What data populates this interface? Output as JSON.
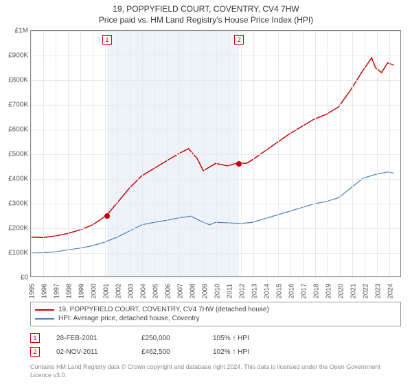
{
  "title": "19, POPPYFIELD COURT, COVENTRY, CV4 7HW",
  "subtitle": "Price paid vs. HM Land Registry's House Price Index (HPI)",
  "chart": {
    "type": "line",
    "background_color": "#ffffff",
    "grid_color": "#e8e8e8",
    "border_color": "#888888",
    "shade_color": "#e6eef7",
    "x_years": [
      1995,
      1996,
      1997,
      1998,
      1999,
      2000,
      2001,
      2002,
      2003,
      2004,
      2005,
      2006,
      2007,
      2008,
      2009,
      2010,
      2011,
      2012,
      2013,
      2014,
      2015,
      2016,
      2017,
      2018,
      2019,
      2020,
      2021,
      2022,
      2023,
      2024
    ],
    "x_range": [
      1995,
      2025
    ],
    "y_ticks": [
      0,
      100000,
      200000,
      300000,
      400000,
      500000,
      600000,
      700000,
      800000,
      900000,
      1000000
    ],
    "y_tick_labels": [
      "£0",
      "£100K",
      "£200K",
      "£300K",
      "£400K",
      "£500K",
      "£600K",
      "£700K",
      "£800K",
      "£900K",
      "£1M"
    ],
    "y_range": [
      0,
      1000000
    ],
    "title_fontsize": 12,
    "label_fontsize": 10,
    "shaded_range": [
      2001.16,
      2011.84
    ],
    "series": [
      {
        "name": "19, POPPYFIELD COURT, COVENTRY, CV4 7HW (detached house)",
        "color": "#cc0000",
        "line_width": 1.5,
        "data": [
          [
            1995,
            160000
          ],
          [
            1996,
            158000
          ],
          [
            1997,
            165000
          ],
          [
            1998,
            175000
          ],
          [
            1999,
            190000
          ],
          [
            2000,
            210000
          ],
          [
            2001.16,
            250000
          ],
          [
            2002,
            300000
          ],
          [
            2003,
            360000
          ],
          [
            2004,
            410000
          ],
          [
            2005,
            440000
          ],
          [
            2006,
            470000
          ],
          [
            2007,
            500000
          ],
          [
            2007.8,
            520000
          ],
          [
            2008.5,
            480000
          ],
          [
            2009,
            430000
          ],
          [
            2009.5,
            445000
          ],
          [
            2010,
            460000
          ],
          [
            2011,
            450000
          ],
          [
            2011.84,
            462500
          ],
          [
            2012.5,
            460000
          ],
          [
            2013,
            475000
          ],
          [
            2014,
            510000
          ],
          [
            2015,
            545000
          ],
          [
            2016,
            580000
          ],
          [
            2017,
            610000
          ],
          [
            2018,
            640000
          ],
          [
            2019,
            660000
          ],
          [
            2020,
            690000
          ],
          [
            2021,
            760000
          ],
          [
            2022,
            840000
          ],
          [
            2022.7,
            890000
          ],
          [
            2023,
            850000
          ],
          [
            2023.5,
            830000
          ],
          [
            2024,
            870000
          ],
          [
            2024.5,
            860000
          ]
        ]
      },
      {
        "name": "HPI: Average price, detached house, Coventry",
        "color": "#4a7ebb",
        "line_width": 1.2,
        "data": [
          [
            1995,
            95000
          ],
          [
            1996,
            96000
          ],
          [
            1997,
            100000
          ],
          [
            1998,
            108000
          ],
          [
            1999,
            115000
          ],
          [
            2000,
            125000
          ],
          [
            2001,
            140000
          ],
          [
            2002,
            160000
          ],
          [
            2003,
            185000
          ],
          [
            2004,
            210000
          ],
          [
            2005,
            220000
          ],
          [
            2006,
            228000
          ],
          [
            2007,
            238000
          ],
          [
            2008,
            245000
          ],
          [
            2008.8,
            225000
          ],
          [
            2009.5,
            210000
          ],
          [
            2010,
            220000
          ],
          [
            2011,
            218000
          ],
          [
            2012,
            215000
          ],
          [
            2013,
            220000
          ],
          [
            2014,
            235000
          ],
          [
            2015,
            250000
          ],
          [
            2016,
            265000
          ],
          [
            2017,
            280000
          ],
          [
            2018,
            295000
          ],
          [
            2019,
            305000
          ],
          [
            2020,
            320000
          ],
          [
            2021,
            360000
          ],
          [
            2022,
            400000
          ],
          [
            2023,
            415000
          ],
          [
            2024,
            425000
          ],
          [
            2024.5,
            420000
          ]
        ]
      }
    ],
    "markers": [
      {
        "label": "1",
        "x": 2001.16,
        "y": 250000,
        "color": "#cc0000"
      },
      {
        "label": "2",
        "x": 2011.84,
        "y": 462500,
        "color": "#cc0000"
      }
    ]
  },
  "legend": [
    {
      "color": "#cc0000",
      "text": "19, POPPYFIELD COURT, COVENTRY, CV4 7HW (detached house)"
    },
    {
      "color": "#4a7ebb",
      "text": "HPI: Average price, detached house, Coventry"
    }
  ],
  "sales": [
    {
      "marker": "1",
      "marker_color": "#cc0000",
      "date": "28-FEB-2001",
      "price": "£250,000",
      "hpi": "105% ↑ HPI"
    },
    {
      "marker": "2",
      "marker_color": "#cc0000",
      "date": "02-NOV-2011",
      "price": "£462,500",
      "hpi": "102% ↑ HPI"
    }
  ],
  "attribution": "Contains HM Land Registry data © Crown copyright and database right 2024. This data is licensed under the Open Government Licence v3.0."
}
